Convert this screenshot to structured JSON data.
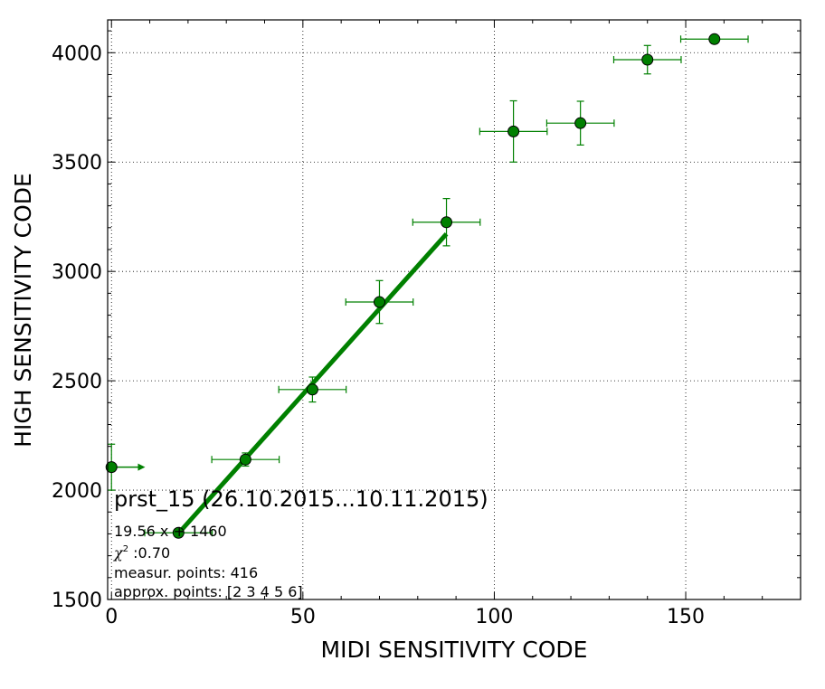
{
  "chart_data": {
    "type": "scatter",
    "xlabel": "MIDI SENSITIVITY CODE",
    "ylabel": "HIGH SENSITIVITY CODE",
    "xlim": [
      -1,
      180
    ],
    "ylim": [
      1500,
      4150
    ],
    "x_ticks": [
      0,
      50,
      100,
      150
    ],
    "y_ticks": [
      1500,
      2000,
      2500,
      3000,
      3500,
      4000
    ],
    "grid": true,
    "color": "#008000",
    "points": [
      {
        "x": 0,
        "y": 2105,
        "x_err_upper_arrow": true,
        "y_err": 105
      },
      {
        "x": 17.5,
        "y": 1805,
        "x_err": 8.8,
        "y_err": 8
      },
      {
        "x": 35,
        "y": 2140,
        "x_err": 8.8,
        "y_err": 30
      },
      {
        "x": 52.5,
        "y": 2460,
        "x_err": 8.8,
        "y_err": 57
      },
      {
        "x": 70,
        "y": 2860,
        "x_err": 8.8,
        "y_err": 98
      },
      {
        "x": 87.5,
        "y": 3225,
        "x_err": 8.8,
        "y_err": 108
      },
      {
        "x": 105,
        "y": 3640,
        "x_err": 8.8,
        "y_err": 140
      },
      {
        "x": 122.5,
        "y": 3678,
        "x_err": 8.8,
        "y_err": 100
      },
      {
        "x": 140,
        "y": 3968,
        "x_err": 8.8,
        "y_err": 65
      },
      {
        "x": 157.5,
        "y": 4062,
        "x_err": 8.8,
        "y_err": 0
      }
    ],
    "fit_line": {
      "slope": 19.56,
      "intercept": 1460,
      "x_from": 17.5,
      "x_to": 87.5
    },
    "annotation": {
      "title": "prst_15 (26.10.2015...10.11.2015)",
      "formula": "19.56 x + 1460",
      "chi_value": " :0.70",
      "measur_points": "measur. points: 416",
      "approx_points": "approx. points: [2 3 4 5 6]"
    }
  }
}
